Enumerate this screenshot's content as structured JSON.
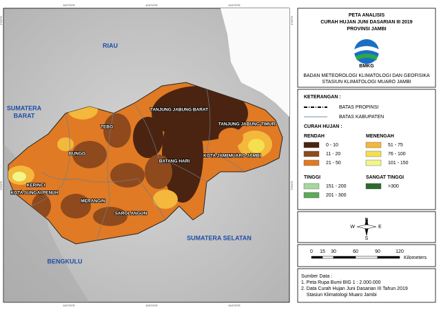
{
  "map": {
    "grid_labels": {
      "top": [
        "102°0'0\"E",
        "103°0'0\"E",
        "104°0'0\"E"
      ],
      "bottom": [
        "102°0'0\"E",
        "103°0'0\"E",
        "104°0'0\"E"
      ],
      "left": [
        "1°0'0\"S",
        "2°0'0\"S"
      ],
      "right": [
        "1°0'0\"S",
        "2°0'0\"S"
      ]
    },
    "regions": [
      "RIAU",
      "SUMATERA",
      "BARAT",
      "SUMATERA SELATAN",
      "BENGKULU"
    ],
    "districts": [
      "TANJUNG JABUNG BARAT",
      "TANJUNG JABUNG TIMUR",
      "TEBO",
      "BUNGO",
      "BATANG HARI",
      "KOTA JAMBI",
      "MUARO JAMBI",
      "KERINCI",
      "KOTA SUNGAI PENUH",
      "MERANGIN",
      "SAROLANGUN"
    ]
  },
  "panel": {
    "title": [
      "PETA ANALISIS",
      "CURAH HUJAN JUNI DASARIAN III 2019",
      "PROVINSI JAMBI"
    ],
    "logo": "BMKG",
    "agency": [
      "BADAN METEOROLOGI KLIMATOLOGI DAN GEOFISIKA",
      "STASIUN KLIMATOLOGI MUARO JAMBI"
    ],
    "legend": {
      "heading": "KETERANGAN :",
      "boundaries": [
        "BATAS PROPINSI",
        "BATAS KABUPATEN"
      ],
      "rainfall_heading": "CURAH HUJAN :",
      "groups": [
        {
          "name": "RENDAH",
          "items": [
            {
              "label": "0 - 10",
              "color": "#4a2410"
            },
            {
              "label": "11 - 20",
              "color": "#8e4a1c"
            },
            {
              "label": "21 - 50",
              "color": "#e07a24"
            }
          ]
        },
        {
          "name": "MENENGAH",
          "items": [
            {
              "label": "51 - 75",
              "color": "#f3b83c"
            },
            {
              "label": "76 - 100",
              "color": "#f6df4e"
            },
            {
              "label": "101 - 150",
              "color": "#f1f68a"
            }
          ]
        },
        {
          "name": "TINGGI",
          "items": [
            {
              "label": "151 - 200",
              "color": "#a6d89c"
            },
            {
              "label": "201 - 300",
              "color": "#5caa5a"
            }
          ]
        },
        {
          "name": "SANGAT TINGGI",
          "items": [
            {
              "label": ">300",
              "color": "#2c6a2c"
            }
          ]
        }
      ]
    },
    "compass": {
      "n": "N",
      "s": "S",
      "e": "E",
      "w": "W"
    },
    "scale": {
      "ticks": [
        "0",
        "15",
        "30",
        "60",
        "90",
        "120"
      ],
      "unit": "Kilometers"
    },
    "source": {
      "heading": "Sumber Data :",
      "lines": [
        "1. Peta Rupa Bumi BIG 1 : 2.000.000",
        "2. Data Curah Hujan Juni Dasarian III Tahun 2019",
        "    Stasiun Klimatologi Muaro Jambi"
      ]
    }
  }
}
